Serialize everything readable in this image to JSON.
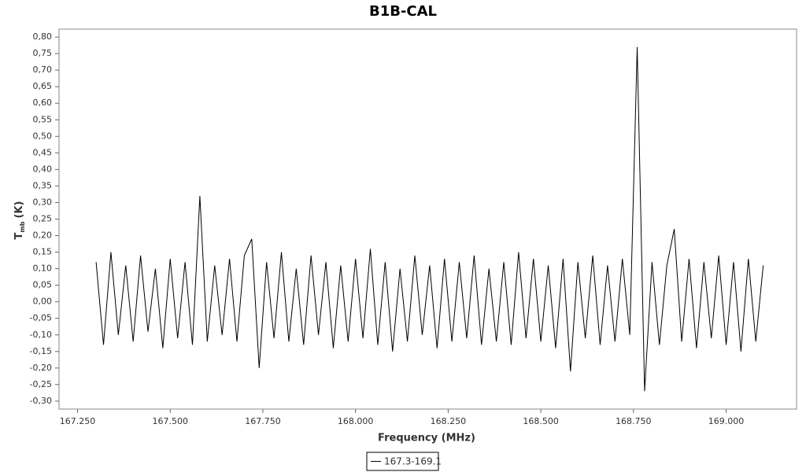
{
  "chart_data": {
    "type": "line",
    "title": "B1B-CAL",
    "xlabel": "Frequency (MHz)",
    "ylabel": "T",
    "ylabel_sub": "mb",
    "ylabel_unit": "(K)",
    "x": [
      167.3,
      167.32,
      167.34,
      167.36,
      167.38,
      167.4,
      167.42,
      167.44,
      167.46,
      167.48,
      167.5,
      167.52,
      167.54,
      167.56,
      167.58,
      167.6,
      167.62,
      167.64,
      167.66,
      167.68,
      167.7,
      167.72,
      167.74,
      167.76,
      167.78,
      167.8,
      167.82,
      167.84,
      167.86,
      167.88,
      167.9,
      167.92,
      167.94,
      167.96,
      167.98,
      168.0,
      168.02,
      168.04,
      168.06,
      168.08,
      168.1,
      168.12,
      168.14,
      168.16,
      168.18,
      168.2,
      168.22,
      168.24,
      168.26,
      168.28,
      168.3,
      168.32,
      168.34,
      168.36,
      168.38,
      168.4,
      168.42,
      168.44,
      168.46,
      168.48,
      168.5,
      168.52,
      168.54,
      168.56,
      168.58,
      168.6,
      168.62,
      168.64,
      168.66,
      168.68,
      168.7,
      168.72,
      168.74,
      168.76,
      168.78,
      168.8,
      168.82,
      168.84,
      168.86,
      168.88,
      168.9,
      168.92,
      168.94,
      168.96,
      168.98,
      169.0,
      169.02,
      169.04,
      169.06,
      169.08,
      169.1
    ],
    "series": [
      {
        "name": "167.3-169.1",
        "color": "#000000",
        "values": [
          0.12,
          -0.13,
          0.15,
          -0.1,
          0.11,
          -0.12,
          0.14,
          -0.09,
          0.1,
          -0.14,
          0.13,
          -0.11,
          0.12,
          -0.13,
          0.32,
          -0.12,
          0.11,
          -0.1,
          0.13,
          -0.12,
          0.14,
          0.19,
          -0.2,
          0.12,
          -0.11,
          0.15,
          -0.12,
          0.1,
          -0.13,
          0.14,
          -0.1,
          0.12,
          -0.14,
          0.11,
          -0.12,
          0.13,
          -0.11,
          0.16,
          -0.13,
          0.12,
          -0.15,
          0.1,
          -0.12,
          0.14,
          -0.1,
          0.11,
          -0.14,
          0.13,
          -0.12,
          0.12,
          -0.11,
          0.14,
          -0.13,
          0.1,
          -0.12,
          0.12,
          -0.13,
          0.15,
          -0.11,
          0.13,
          -0.12,
          0.11,
          -0.14,
          0.13,
          -0.21,
          0.12,
          -0.11,
          0.14,
          -0.13,
          0.11,
          -0.12,
          0.13,
          -0.1,
          0.77,
          -0.27,
          0.12,
          -0.13,
          0.11,
          0.22,
          -0.12,
          0.13,
          -0.14,
          0.12,
          -0.11,
          0.14,
          -0.13,
          0.12,
          -0.15,
          0.13,
          -0.12,
          0.11
        ]
      }
    ],
    "xlim": [
      167.2,
      169.19
    ],
    "ylim": [
      -0.324,
      0.824
    ],
    "xticks": [
      {
        "value": 167.25,
        "label": "167.250"
      },
      {
        "value": 167.5,
        "label": "167.500"
      },
      {
        "value": 167.75,
        "label": "167.750"
      },
      {
        "value": 168,
        "label": "168.000"
      },
      {
        "value": 168.25,
        "label": "168.250"
      },
      {
        "value": 168.5,
        "label": "168.500"
      },
      {
        "value": 168.75,
        "label": "168.750"
      },
      {
        "value": 169,
        "label": "169.000"
      }
    ],
    "yticks": [
      {
        "value": -0.3,
        "label": "-0,30"
      },
      {
        "value": -0.25,
        "label": "-0,25"
      },
      {
        "value": -0.2,
        "label": "-0,20"
      },
      {
        "value": -0.15,
        "label": "-0,15"
      },
      {
        "value": -0.1,
        "label": "-0,10"
      },
      {
        "value": -0.05,
        "label": "-0,05"
      },
      {
        "value": 0,
        "label": "0,00"
      },
      {
        "value": 0.05,
        "label": "0,05"
      },
      {
        "value": 0.1,
        "label": "0,10"
      },
      {
        "value": 0.15,
        "label": "0,15"
      },
      {
        "value": 0.2,
        "label": "0,20"
      },
      {
        "value": 0.25,
        "label": "0,25"
      },
      {
        "value": 0.3,
        "label": "0,30"
      },
      {
        "value": 0.35,
        "label": "0,35"
      },
      {
        "value": 0.4,
        "label": "0,40"
      },
      {
        "value": 0.45,
        "label": "0,45"
      },
      {
        "value": 0.5,
        "label": "0,50"
      },
      {
        "value": 0.55,
        "label": "0,55"
      },
      {
        "value": 0.6,
        "label": "0,60"
      },
      {
        "value": 0.65,
        "label": "0,65"
      },
      {
        "value": 0.7,
        "label": "0,70"
      },
      {
        "value": 0.75,
        "label": "0,75"
      },
      {
        "value": 0.8,
        "label": "0,80"
      }
    ],
    "grid": false
  }
}
